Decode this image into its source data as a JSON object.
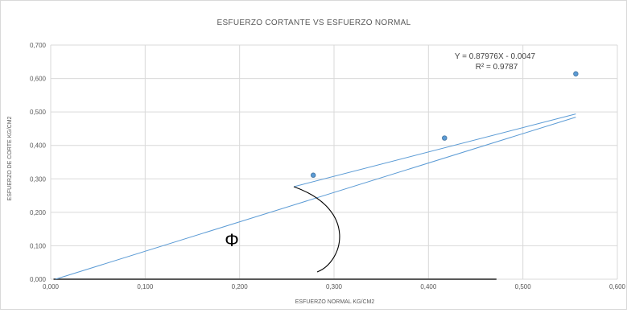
{
  "chart_data": {
    "type": "scatter",
    "title": "ESFUERZO CORTANTE   VS   ESFUERZO NORMAL",
    "xlabel": "ESFUERZO NORMAL KG/CM2",
    "ylabel": "ESFUERZO DE CORTE KG/CM2",
    "xlim": [
      0,
      0.6
    ],
    "ylim": [
      0,
      0.7
    ],
    "x_ticks": [
      "0,000",
      "0,100",
      "0,200",
      "0,300",
      "0,400",
      "0,500",
      "0,600"
    ],
    "y_ticks": [
      "0,000",
      "0,100",
      "0,200",
      "0,300",
      "0,400",
      "0,500",
      "0,600",
      "0,700"
    ],
    "grid": true,
    "points": [
      {
        "x": 0.278,
        "y": 0.311
      },
      {
        "x": 0.417,
        "y": 0.422
      },
      {
        "x": 0.556,
        "y": 0.614
      }
    ],
    "trendline": {
      "slope": 0.87976,
      "intercept": -0.0047,
      "x_range": [
        0.005,
        0.556
      ]
    },
    "equation_label": "Y = 0.87976X - 0.0047",
    "r2_label": "R² = 0.9787",
    "angle_symbol": "Φ",
    "colors": {
      "series": "#5b9bd5",
      "marker_edge": "#41719c",
      "grid": "#d9d9d9",
      "axis": "#7f7f7f"
    }
  }
}
